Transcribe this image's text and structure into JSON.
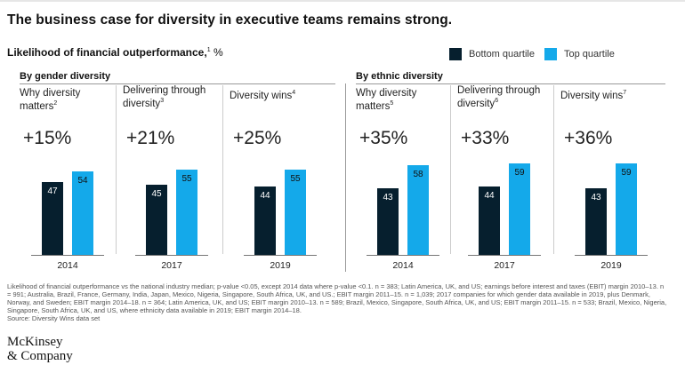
{
  "title": "The business case for diversity in executive teams remains strong.",
  "subtitle": "Likelihood of financial outperformance,",
  "subtitle_note": "1",
  "subtitle_unit": " %",
  "legend": [
    {
      "name": "Bottom quartile",
      "color": "#061f2e"
    },
    {
      "name": "Top quartile",
      "color": "#14a9ea"
    }
  ],
  "groups": [
    {
      "title": "By gender diversity"
    },
    {
      "title": "By ethnic diversity"
    }
  ],
  "chart_data": {
    "type": "bar",
    "series": [
      {
        "name": "Bottom quartile",
        "color": "#061f2e"
      },
      {
        "name": "Top quartile",
        "color": "#14a9ea"
      }
    ],
    "panels": [
      {
        "group": "By gender diversity",
        "label": "Why diversity matters",
        "note": "2",
        "year": "2014",
        "change": "+15%",
        "bottom": 47,
        "top": 54
      },
      {
        "group": "By gender diversity",
        "label": "Delivering through diversity",
        "note": "3",
        "year": "2017",
        "change": "+21%",
        "bottom": 45,
        "top": 55
      },
      {
        "group": "By gender diversity",
        "label": "Diversity wins",
        "note": "4",
        "year": "2019",
        "change": "+25%",
        "bottom": 44,
        "top": 55
      },
      {
        "group": "By ethnic diversity",
        "label": "Why diversity matters",
        "note": "5",
        "year": "2014",
        "change": "+35%",
        "bottom": 43,
        "top": 58
      },
      {
        "group": "By ethnic diversity",
        "label": "Delivering through diversity",
        "note": "6",
        "year": "2017",
        "change": "+33%",
        "bottom": 44,
        "top": 59
      },
      {
        "group": "By ethnic diversity",
        "label": "Diversity wins",
        "note": "7",
        "year": "2019",
        "change": "+36%",
        "bottom": 43,
        "top": 59
      }
    ]
  },
  "footnotes": "Likelihood of financial outperformance vs the national industry median; p-value <0.05, except 2014 data where p-value <0.1.  n = 383; Latin America, UK, and US; earnings before interest and taxes (EBIT) margin 2010–13.  n = 991; Australia, Brazil, France, Germany, India, Japan, Mexico, Nigeria, Singapore, South Africa, UK, and US.; EBIT margin 2011–15.  n = 1,039; 2017 companies for which gender data available in 2019, plus Denmark, Norway, and Sweden;  EBIT margin 2014–18.  n = 364; Latin America, UK, and US; EBIT margin 2010–13.  n = 589; Brazil, Mexico, Singapore, South Africa, UK, and US; EBIT margin 2011–15.  n = 533; Brazil, Mexico, Nigeria, Singapore, South Africa, UK, and US, where ethnicity data available in 2019; EBIT margin 2014–18.",
  "source": "Source: Diversity Wins data set",
  "logo": [
    "McKinsey",
    "& Company"
  ]
}
